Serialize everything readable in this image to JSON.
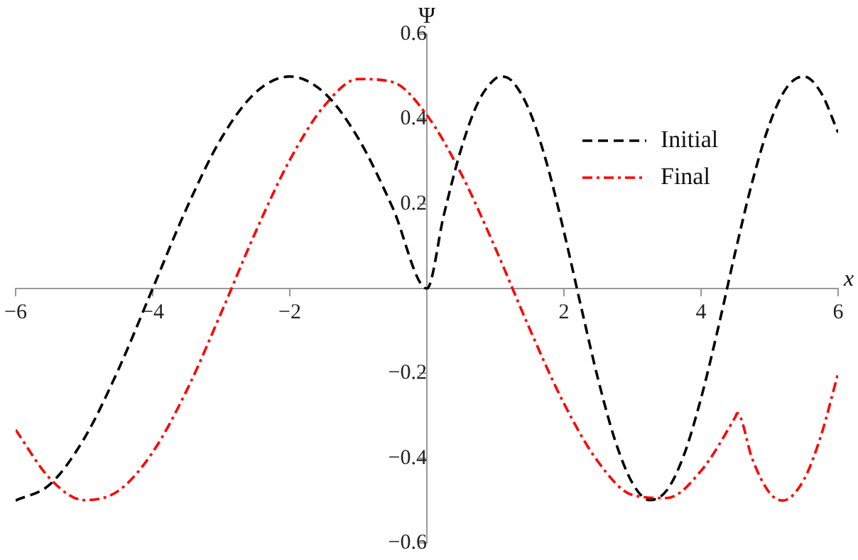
{
  "chart_data": {
    "type": "line",
    "xlabel": "x",
    "ylabel": "Ψ",
    "xlim": [
      -6,
      6
    ],
    "ylim": [
      -0.6,
      0.6
    ],
    "xticks": [
      -6,
      -4,
      -2,
      {
        "value": 0,
        "label": null
      },
      2,
      4,
      6
    ],
    "yticks": [
      -0.6,
      -0.4,
      -0.2,
      {
        "value": 0,
        "label": null
      },
      0.2,
      0.4,
      0.6
    ],
    "grid": false,
    "legend": "top right",
    "marker": "none",
    "series": [
      {
        "name": "Initial",
        "color": "#000000",
        "line_style": "dashed",
        "x": [
          -6,
          -5.5,
          -5,
          -4.5,
          -4,
          -3.5,
          -3,
          -2.5,
          -2,
          -1.5,
          -1,
          -0.5,
          0,
          0.25,
          0.5,
          0.75,
          1,
          1.1,
          1.25,
          1.5,
          1.75,
          2,
          2.25,
          2.5,
          2.75,
          3,
          3.25,
          3.5,
          3.75,
          4,
          4.25,
          4.5,
          4.75,
          5,
          5.25,
          5.5,
          5.75,
          6
        ],
        "values": [
          -0.5,
          -0.462,
          -0.354,
          -0.191,
          0,
          0.191,
          0.354,
          0.462,
          0.5,
          0.462,
          0.354,
          0.191,
          0,
          0.175,
          0.329,
          0.44,
          0.495,
          0.5,
          0.488,
          0.418,
          0.295,
          0.134,
          -0.043,
          -0.215,
          -0.36,
          -0.459,
          -0.499,
          -0.476,
          -0.393,
          -0.259,
          -0.093,
          0.086,
          0.253,
          0.388,
          0.474,
          0.5,
          0.462,
          0.368
        ]
      },
      {
        "name": "Final",
        "color": "#ff0000",
        "line_style": "dashdot",
        "x": [
          -6,
          -5.5,
          -5,
          -4.5,
          -4,
          -3.5,
          -3,
          -2.5,
          -2,
          -1.5,
          -1,
          -0.5,
          0,
          0.5,
          1,
          1.5,
          2,
          2.5,
          3,
          3.5,
          4,
          4.5,
          4.53,
          4.75,
          5,
          5.19,
          5.5,
          5.75,
          6
        ],
        "values": [
          -0.333,
          -0.448,
          -0.499,
          -0.477,
          -0.386,
          -0.239,
          -0.057,
          0.133,
          0.303,
          0.43,
          0.494,
          0.487,
          0.409,
          0.271,
          0.095,
          -0.095,
          -0.271,
          -0.409,
          -0.487,
          -0.494,
          -0.43,
          -0.303,
          -0.294,
          -0.403,
          -0.482,
          -0.5,
          -0.451,
          -0.347,
          -0.2
        ]
      }
    ]
  }
}
